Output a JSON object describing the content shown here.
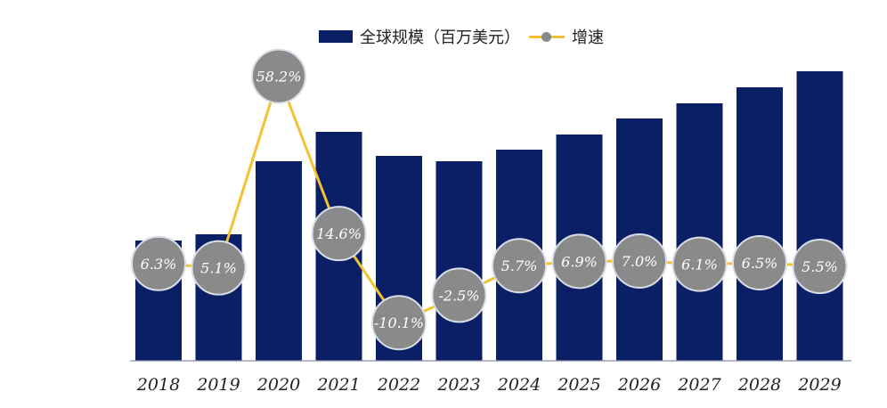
{
  "chart_data": {
    "type": "bar+line",
    "categories": [
      "2018",
      "2019",
      "2020",
      "2021",
      "2022",
      "2023",
      "2024",
      "2025",
      "2026",
      "2027",
      "2028",
      "2029"
    ],
    "series": [
      {
        "name": "全球规模（百万美元）",
        "type": "bar",
        "color": "#0b1f66",
        "values": [
          135,
          142,
          224,
          257,
          230,
          224,
          237,
          254,
          272,
          289,
          307,
          325
        ]
      },
      {
        "name": "增速",
        "type": "line",
        "color": "#f2c230",
        "marker_color": "#8a8a8a",
        "unit": "%",
        "values": [
          6.3,
          5.1,
          58.2,
          14.6,
          -10.1,
          -2.5,
          5.7,
          6.9,
          7.0,
          6.1,
          6.5,
          5.5
        ],
        "labels": [
          "6.3%",
          "5.1%",
          "58.2%",
          "14.6%",
          "-10.1%",
          "-2.5%",
          "5.7%",
          "6.9%",
          "7.0%",
          "6.1%",
          "6.5%",
          "5.5%"
        ]
      }
    ],
    "legend": "top-center",
    "grid": false,
    "y_axis_shown": false
  }
}
